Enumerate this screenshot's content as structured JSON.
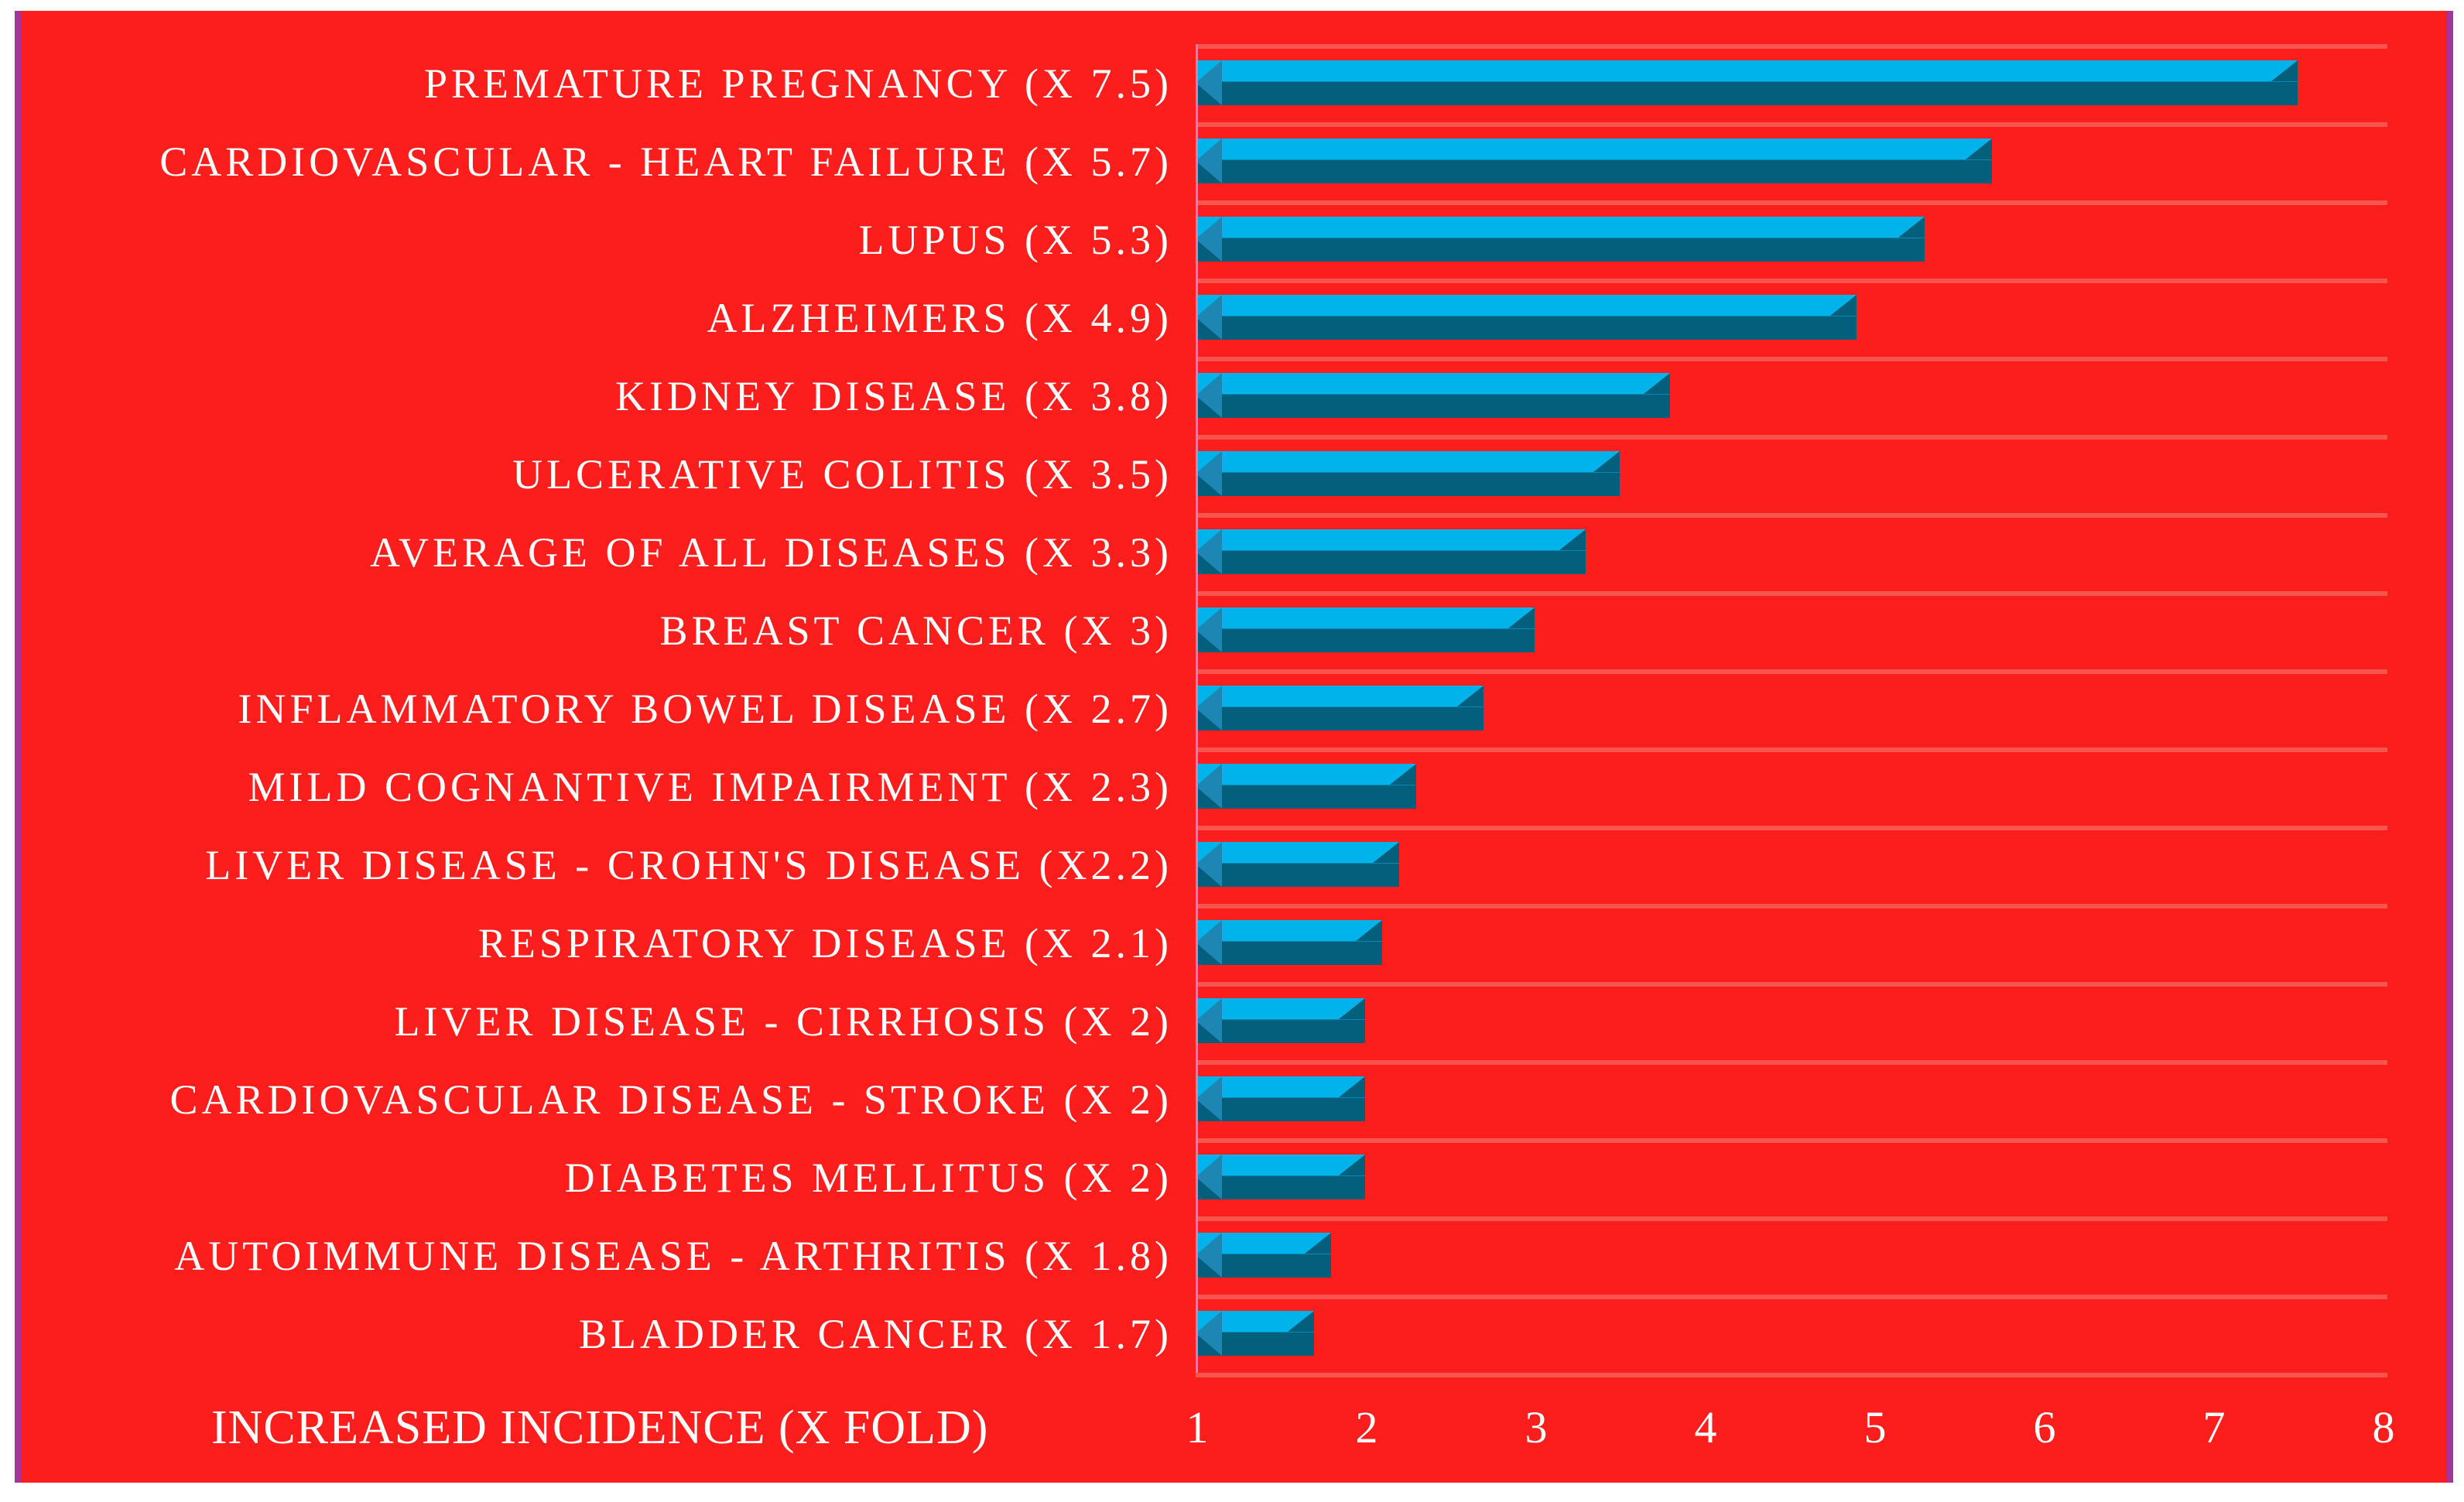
{
  "chart_data": {
    "type": "bar",
    "orientation": "horizontal",
    "title": "",
    "xlabel": "INCREASED INCIDENCE (X FOLD)",
    "ylabel": "",
    "xlim": [
      1,
      8.4
    ],
    "x_ticks": [
      "1",
      "2",
      "3",
      "4",
      "5",
      "6",
      "7",
      "8"
    ],
    "grid": "horizontal-row-separators",
    "legend": "none",
    "categories": [
      "PREMATURE PREGNANCY (X 7.5)",
      "CARDIOVASCULAR - HEART FAILURE (X 5.7)",
      "LUPUS (X 5.3)",
      "ALZHEIMERS (X 4.9)",
      "KIDNEY DISEASE (X 3.8)",
      "ULCERATIVE COLITIS (X 3.5)",
      "AVERAGE OF ALL DISEASES (X 3.3)",
      "BREAST CANCER (X 3)",
      "INFLAMMATORY BOWEL DISEASE (X 2.7)",
      "MILD COGNANTIVE IMPAIRMENT (X 2.3)",
      "LIVER DISEASE - CROHN'S DISEASE (X2.2)",
      "RESPIRATORY DISEASE (X 2.1)",
      "LIVER DISEASE - CIRRHOSIS (X 2)",
      "CARDIOVASCULAR DISEASE - STROKE (X 2)",
      "DIABETES MELLITUS (X 2)",
      "AUTOIMMUNE DISEASE - ARTHRITIS (X 1.8)",
      "BLADDER CANCER (X 1.7)"
    ],
    "values": [
      7.5,
      5.7,
      5.3,
      4.9,
      3.8,
      3.5,
      3.3,
      3,
      2.7,
      2.3,
      2.2,
      2.1,
      2,
      2,
      2,
      1.8,
      1.7
    ],
    "colors": {
      "background": "#fc1e1c",
      "bar_top": "#00b3ea",
      "bar_bottom": "#045f7d",
      "bar_left_cap": "#1e86b2",
      "gridline": "#f6564e",
      "axis_line": "#cf82c4",
      "frame_border": "#a83399",
      "text": "#ffffff"
    }
  }
}
